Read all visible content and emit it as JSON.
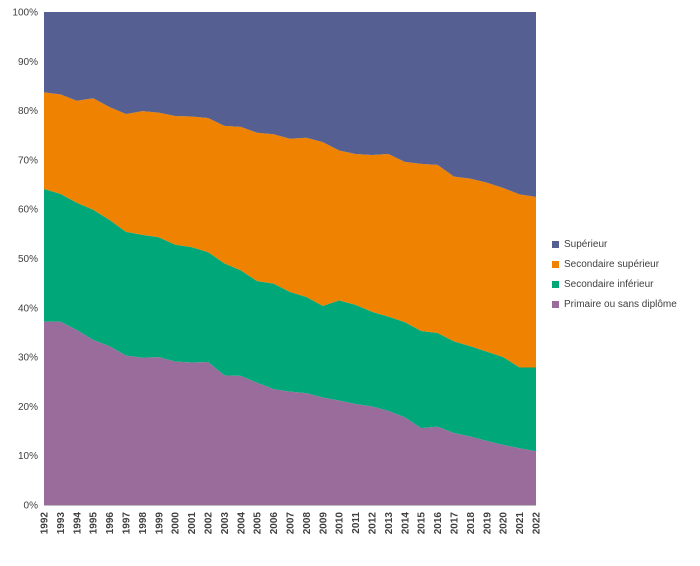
{
  "chart_data": {
    "type": "area",
    "stacked": true,
    "percent": true,
    "x": [
      "1992",
      "1993",
      "1994",
      "1995",
      "1996",
      "1997",
      "1998",
      "1999",
      "2000",
      "2001",
      "2002",
      "2003",
      "2004",
      "2005",
      "2006",
      "2007",
      "2008",
      "2009",
      "2010",
      "2011",
      "2012",
      "2013",
      "2014",
      "2015",
      "2016",
      "2017",
      "2018",
      "2019",
      "2020",
      "2021",
      "2022"
    ],
    "y_ticks": [
      "0%",
      "10%",
      "20%",
      "30%",
      "40%",
      "50%",
      "60%",
      "70%",
      "80%",
      "90%",
      "100%"
    ],
    "ylim": [
      0,
      100
    ],
    "grid": false,
    "legend_position": "right",
    "series": [
      {
        "name": "Primaire ou sans diplôme",
        "color": "#9A6C9C",
        "values": [
          37.2,
          37.2,
          35.5,
          33.5,
          32.2,
          30.3,
          29.9,
          30.0,
          29.1,
          28.9,
          29.0,
          26.3,
          26.2,
          24.8,
          23.5,
          23.0,
          22.7,
          21.8,
          21.2,
          20.5,
          20.0,
          19.1,
          17.8,
          15.6,
          15.9,
          14.6,
          13.9,
          13.0,
          12.2,
          11.5,
          10.9
        ]
      },
      {
        "name": "Secondaire inférieur",
        "color": "#00A779",
        "values": [
          26.9,
          25.9,
          25.8,
          26.4,
          25.6,
          25.1,
          24.9,
          24.3,
          23.7,
          23.4,
          22.3,
          22.7,
          21.4,
          20.6,
          21.4,
          20.2,
          19.5,
          18.6,
          20.3,
          20.1,
          19.2,
          19.1,
          19.3,
          19.7,
          19.0,
          18.6,
          18.3,
          18.1,
          17.8,
          16.4,
          17.0
        ]
      },
      {
        "name": "Secondaire supérieur",
        "color": "#EF8200",
        "values": [
          19.6,
          20.2,
          20.7,
          22.6,
          22.9,
          23.9,
          25.1,
          25.3,
          26.1,
          26.5,
          27.2,
          27.9,
          29.1,
          30.1,
          30.3,
          31.1,
          32.3,
          33.2,
          30.4,
          30.6,
          31.8,
          33.0,
          32.5,
          33.9,
          34.1,
          33.4,
          34.0,
          34.3,
          34.3,
          35.1,
          34.6
        ]
      },
      {
        "name": "Supérieur",
        "color": "#555F92",
        "values": [
          16.3,
          16.7,
          18.0,
          17.5,
          19.3,
          20.7,
          20.1,
          20.4,
          21.1,
          21.2,
          21.5,
          23.1,
          23.3,
          24.5,
          24.8,
          25.7,
          25.5,
          26.4,
          28.1,
          28.8,
          29.0,
          28.8,
          30.4,
          30.8,
          31.0,
          33.4,
          33.8,
          34.6,
          35.7,
          37.0,
          37.5
        ]
      }
    ]
  }
}
